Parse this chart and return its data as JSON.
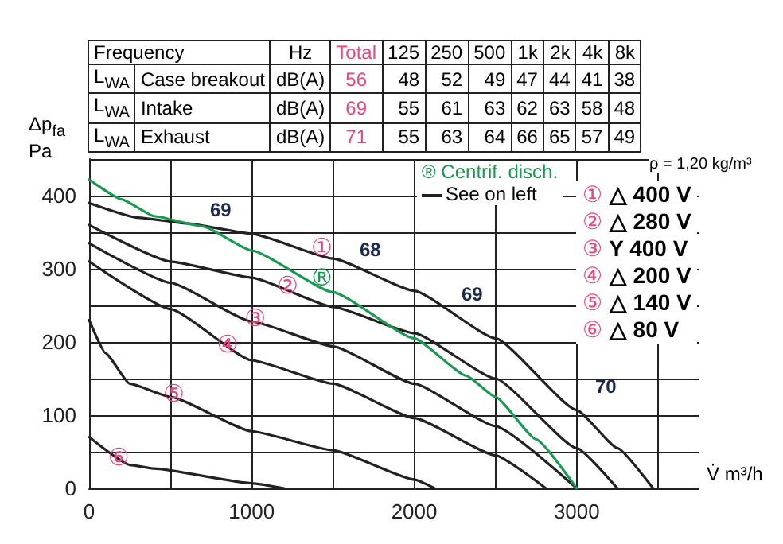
{
  "chart_data": [
    {
      "type": "other",
      "annotations": [
        "Frequency",
        "Hz",
        "Total",
        "125",
        "250",
        "500",
        "1k",
        "2k",
        "4k",
        "8k",
        "L$_{WA}$",
        "Case breakout",
        "dB(A)",
        "56",
        "48",
        "52",
        "49",
        "47",
        "44",
        "41",
        "38",
        "L$_{WA}$",
        "Intake",
        "dB(A)",
        "69",
        "55",
        "61",
        "63",
        "62",
        "63",
        "58",
        "48",
        "L$_{WA}$",
        "Exhaust",
        "dB(A)",
        "71",
        "55",
        "63",
        "64",
        "66",
        "65",
        "57",
        "49"
      ]
    },
    {
      "type": "line",
      "xlabel": "V̇ m³/h",
      "ylabel": "Δp$_{fa}$ Pa",
      "xlim": [
        0,
        3750
      ],
      "ylim": [
        0,
        450
      ],
      "xticks": [
        0,
        {
          "value": 500,
          "label": null
        },
        1000,
        {
          "value": 1500,
          "label": null
        },
        2000,
        {
          "value": 2500,
          "label": null
        },
        3000,
        {
          "value": 3500,
          "label": null
        }
      ],
      "yticks": [
        0,
        {
          "value": 50,
          "label": null
        },
        100,
        {
          "value": 150,
          "label": null
        },
        200,
        {
          "value": 250,
          "label": null
        },
        300,
        {
          "value": 350,
          "label": null
        },
        400,
        {
          "value": 450,
          "label": null
        }
      ],
      "grid": true,
      "marker": "none",
      "line_style": "solid",
      "series": [
        {
          "color": "#222222",
          "x": [
            0,
            300,
            600,
            1000,
            1500,
            2000,
            2500,
            3000,
            3250,
            3470
          ],
          "values": [
            390,
            370,
            362,
            348,
            314,
            270,
            205,
            107,
            55,
            0
          ]
        },
        {
          "color": "#222222",
          "x": [
            0,
            500,
            1000,
            1500,
            2000,
            2500,
            3000,
            3250
          ],
          "values": [
            360,
            310,
            288,
            248,
            212,
            150,
            55,
            0
          ]
        },
        {
          "color": "#222222",
          "x": [
            0,
            500,
            1000,
            1500,
            2000,
            2500,
            3000
          ],
          "values": [
            335,
            281,
            228,
            194,
            143,
            85,
            0
          ]
        },
        {
          "color": "#222222",
          "x": [
            0,
            500,
            1000,
            1500,
            2000,
            2500,
            2810
          ],
          "values": [
            310,
            245,
            175,
            143,
            96,
            45,
            0
          ]
        },
        {
          "color": "#222222",
          "x": [
            0,
            100,
            250,
            500,
            1000,
            1500,
            2000,
            2125
          ],
          "values": [
            230,
            185,
            143,
            125,
            78,
            52,
            12,
            0
          ]
        },
        {
          "color": "#222222",
          "x": [
            0,
            250,
            400,
            1000,
            1200
          ],
          "values": [
            70,
            32,
            27,
            7,
            0
          ]
        },
        {
          "color": "#1a9a50",
          "x": [
            0,
            200,
            400,
            700,
            1000,
            1500,
            2000,
            2320,
            2500,
            2750,
            3000
          ],
          "values": [
            422,
            395,
            372,
            358,
            325,
            268,
            205,
            154,
            125,
            67,
            0
          ]
        }
      ],
      "annotations": [
        "ρ = 1,20 kg/m³",
        "® Centrif. disch.",
        "See on left",
        "① △ 400 V",
        "② △ 280 V",
        "③ Y 400 V",
        "④ △ 200 V",
        "⑤ △ 140 V",
        "⑥ △ 80 V",
        {
          "text": "①",
          "x": 1500,
          "y": 310
        },
        {
          "text": "②",
          "x": 1290,
          "y": 258
        },
        {
          "text": "③",
          "x": 1090,
          "y": 213
        },
        {
          "text": "④",
          "x": 920,
          "y": 177
        },
        {
          "text": "⑤",
          "x": 590,
          "y": 110
        },
        {
          "text": "⑥",
          "x": 250,
          "y": 23
        },
        {
          "text": "®",
          "x": 1500,
          "y": 268
        },
        "69",
        "68",
        "69",
        "70"
      ]
    }
  ]
}
